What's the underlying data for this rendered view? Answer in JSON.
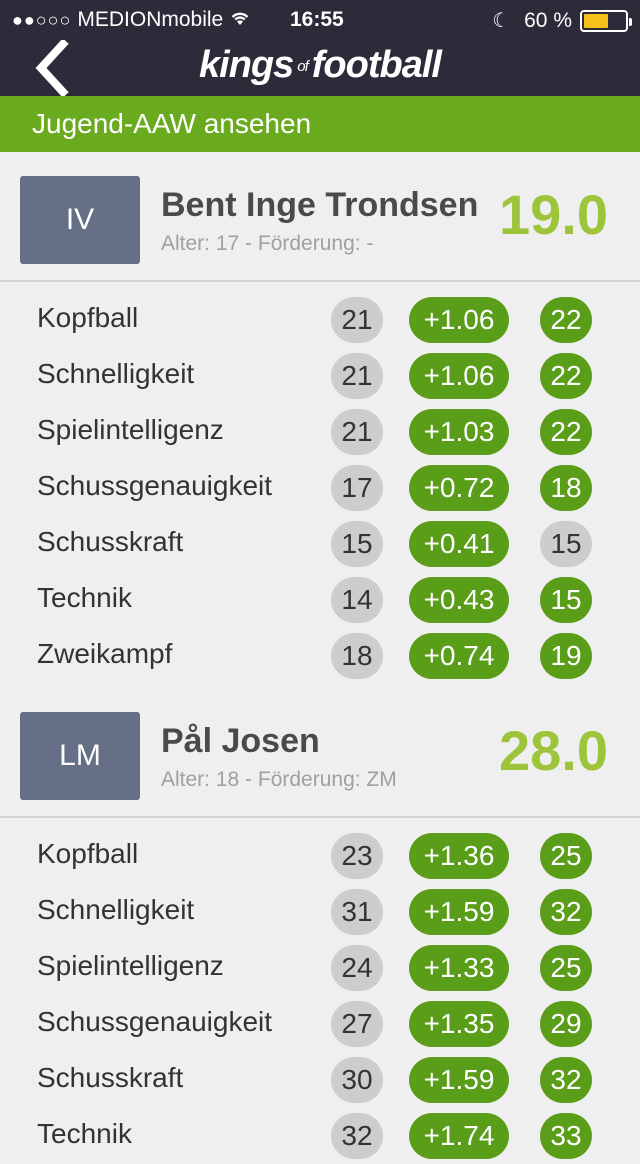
{
  "status": {
    "signal": "●●○○○",
    "carrier": "MEDIONmobile",
    "time": "16:55",
    "battery_text": "60 %",
    "battery_level": 0.6
  },
  "nav": {
    "logo_left": "kings",
    "logo_of": "of",
    "logo_right": "football"
  },
  "section_title": "Jugend-AAW ansehen",
  "players": [
    {
      "position": "IV",
      "name": "Bent Inge Trondsen",
      "meta": "Alter: 17 - Förderung: -",
      "score": "19.0",
      "skills": [
        {
          "label": "Kopfball",
          "current": "21",
          "increase": "+1.06",
          "new": "22"
        },
        {
          "label": "Schnelligkeit",
          "current": "21",
          "increase": "+1.06",
          "new": "22"
        },
        {
          "label": "Spielintelligenz",
          "current": "21",
          "increase": "+1.03",
          "new": "22"
        },
        {
          "label": "Schussgenauigkeit",
          "current": "17",
          "increase": "+0.72",
          "new": "18"
        },
        {
          "label": "Schusskraft",
          "current": "15",
          "increase": "+0.41",
          "new": "15"
        },
        {
          "label": "Technik",
          "current": "14",
          "increase": "+0.43",
          "new": "15"
        },
        {
          "label": "Zweikampf",
          "current": "18",
          "increase": "+0.74",
          "new": "19"
        }
      ]
    },
    {
      "position": "LM",
      "name": "Pål Josen",
      "meta": "Alter: 18 - Förderung: ZM",
      "score": "28.0",
      "skills": [
        {
          "label": "Kopfball",
          "current": "23",
          "increase": "+1.36",
          "new": "25"
        },
        {
          "label": "Schnelligkeit",
          "current": "31",
          "increase": "+1.59",
          "new": "32"
        },
        {
          "label": "Spielintelligenz",
          "current": "24",
          "increase": "+1.33",
          "new": "25"
        },
        {
          "label": "Schussgenauigkeit",
          "current": "27",
          "increase": "+1.35",
          "new": "29"
        },
        {
          "label": "Schusskraft",
          "current": "30",
          "increase": "+1.59",
          "new": "32"
        },
        {
          "label": "Technik",
          "current": "32",
          "increase": "+1.74",
          "new": "33"
        }
      ]
    }
  ],
  "colors": {
    "nav_bg": "#2b2b3a",
    "section_bar": "#6aaa1e",
    "increase_pill": "#5a9d19",
    "neutral_pill": "#cdcdcd",
    "score": "#9dc43b",
    "position_box": "#657086",
    "battery": "#f5c21b"
  }
}
